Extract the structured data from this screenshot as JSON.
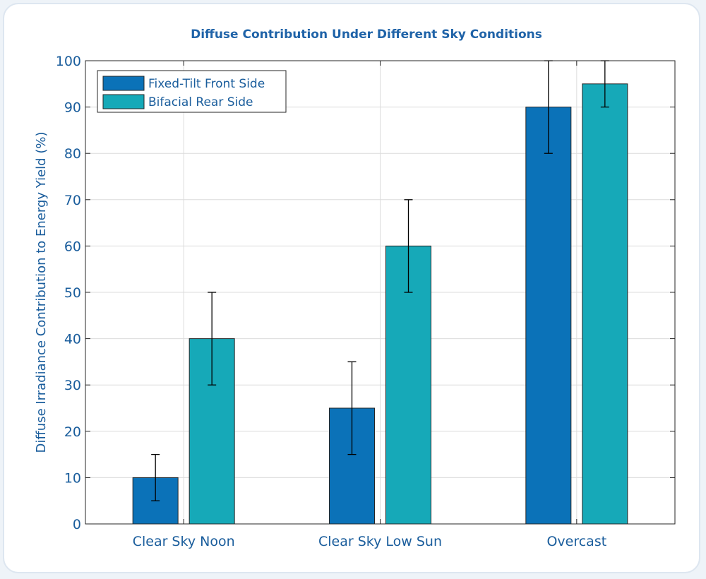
{
  "chart_data": {
    "type": "bar",
    "title": "Diffuse Contribution Under Different Sky Conditions",
    "xlabel": "",
    "ylabel": "Diffuse Irradiance Contribution to Energy Yield (%)",
    "categories": [
      "Clear Sky Noon",
      "Clear Sky Low Sun",
      "Overcast"
    ],
    "ylim": [
      0,
      100
    ],
    "yticks": [
      0,
      10,
      20,
      30,
      40,
      50,
      60,
      70,
      80,
      90,
      100
    ],
    "grid": true,
    "legend_position": "top-left",
    "series": [
      {
        "name": "Fixed-Tilt Front Side",
        "color": "#0b72b8",
        "values": [
          10,
          25,
          90
        ],
        "error": [
          5,
          10,
          10
        ]
      },
      {
        "name": "Bifacial Rear Side",
        "color": "#16a9b8",
        "values": [
          40,
          60,
          95
        ],
        "error": [
          10,
          10,
          5
        ]
      }
    ]
  }
}
